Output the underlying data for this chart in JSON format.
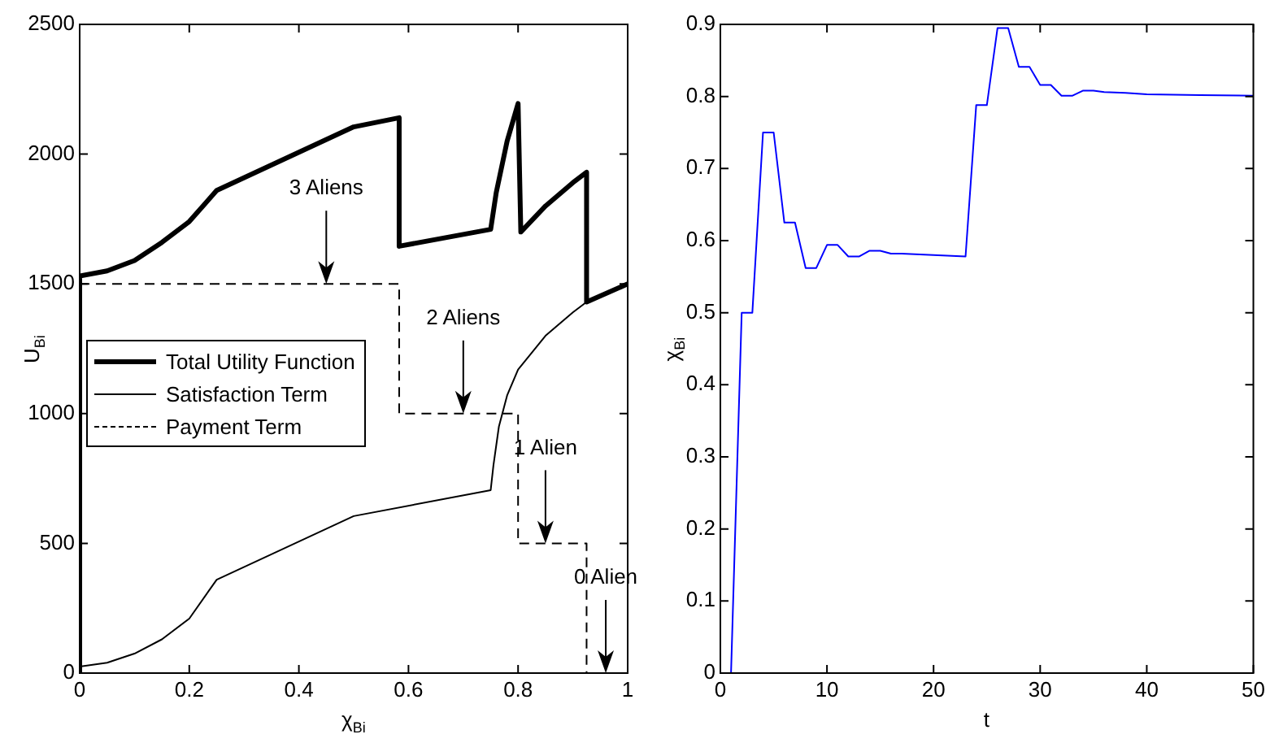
{
  "chart_data": [
    {
      "type": "line",
      "xlabel": "χ$_{Bi}$",
      "ylabel": "U$_{Bi}$",
      "xlim": [
        0,
        1
      ],
      "ylim": [
        0,
        2500
      ],
      "xticks": [
        0,
        0.2,
        0.4,
        0.6,
        0.8,
        1
      ],
      "yticks": [
        0,
        500,
        1000,
        1500,
        2000,
        2500
      ],
      "grid": false,
      "legend": "left",
      "series": [
        {
          "name": "Total Utility Function",
          "color": "#000000",
          "line_style": "solid",
          "x": [
            0,
            0,
            0.05,
            0.1,
            0.15,
            0.2,
            0.25,
            0.5,
            0.583,
            0.583,
            0.75,
            0.76,
            0.78,
            0.8,
            0.805,
            0.85,
            0.9,
            0.925,
            0.925,
            1
          ],
          "values": [
            0,
            1530,
            1550,
            1590,
            1660,
            1740,
            1860,
            2105,
            2140,
            1645,
            1710,
            1850,
            2050,
            2195,
            1700,
            1800,
            1890,
            1930,
            1430,
            1500
          ]
        },
        {
          "name": "Satisfaction Term",
          "color": "#000000",
          "line_style": "solid",
          "x": [
            0,
            0.05,
            0.1,
            0.15,
            0.2,
            0.25,
            0.5,
            0.75,
            0.755,
            0.765,
            0.78,
            0.8,
            0.85,
            0.9,
            0.925,
            1
          ],
          "values": [
            25,
            40,
            75,
            130,
            210,
            360,
            605,
            705,
            800,
            950,
            1070,
            1170,
            1300,
            1390,
            1430,
            1500
          ]
        },
        {
          "name": "Payment Term",
          "color": "#000000",
          "line_style": "dashed",
          "x": [
            0,
            0.583,
            0.583,
            0.8,
            0.8,
            0.925,
            0.925,
            1
          ],
          "values": [
            1500,
            1500,
            1000,
            1000,
            500,
            500,
            0,
            0
          ]
        }
      ],
      "annotations": [
        {
          "text": "3 Aliens",
          "x": 0.45,
          "y": 1500
        },
        {
          "text": "2 Aliens",
          "x": 0.7,
          "y": 1000
        },
        {
          "text": "1 Alien",
          "x": 0.85,
          "y": 500
        },
        {
          "text": "0 Alien",
          "x": 0.96,
          "y": 0
        }
      ]
    },
    {
      "type": "line",
      "xlabel": "t",
      "ylabel": "χ$_{Bi}$",
      "xlim": [
        0,
        50
      ],
      "ylim": [
        0,
        0.9
      ],
      "xticks": [
        0,
        10,
        20,
        30,
        40,
        50
      ],
      "yticks": [
        0,
        0.1,
        0.2,
        0.3,
        0.4,
        0.5,
        0.6,
        0.7,
        0.8,
        0.9
      ],
      "grid": false,
      "legend": false,
      "series": [
        {
          "color": "#0000ff",
          "x": [
            1,
            2,
            3,
            4,
            5,
            6,
            7,
            8,
            9,
            10,
            11,
            12,
            13,
            14,
            15,
            16,
            17,
            20,
            23,
            24,
            25,
            26,
            27,
            28,
            29,
            30,
            31,
            32,
            33,
            34,
            35,
            36,
            38,
            40,
            45,
            50
          ],
          "values": [
            0,
            0.5,
            0.5,
            0.75,
            0.75,
            0.625,
            0.625,
            0.562,
            0.562,
            0.594,
            0.594,
            0.578,
            0.578,
            0.586,
            0.586,
            0.582,
            0.582,
            0.58,
            0.578,
            0.788,
            0.788,
            0.895,
            0.895,
            0.841,
            0.841,
            0.816,
            0.816,
            0.801,
            0.801,
            0.808,
            0.808,
            0.806,
            0.805,
            0.803,
            0.802,
            0.801
          ]
        }
      ]
    }
  ]
}
